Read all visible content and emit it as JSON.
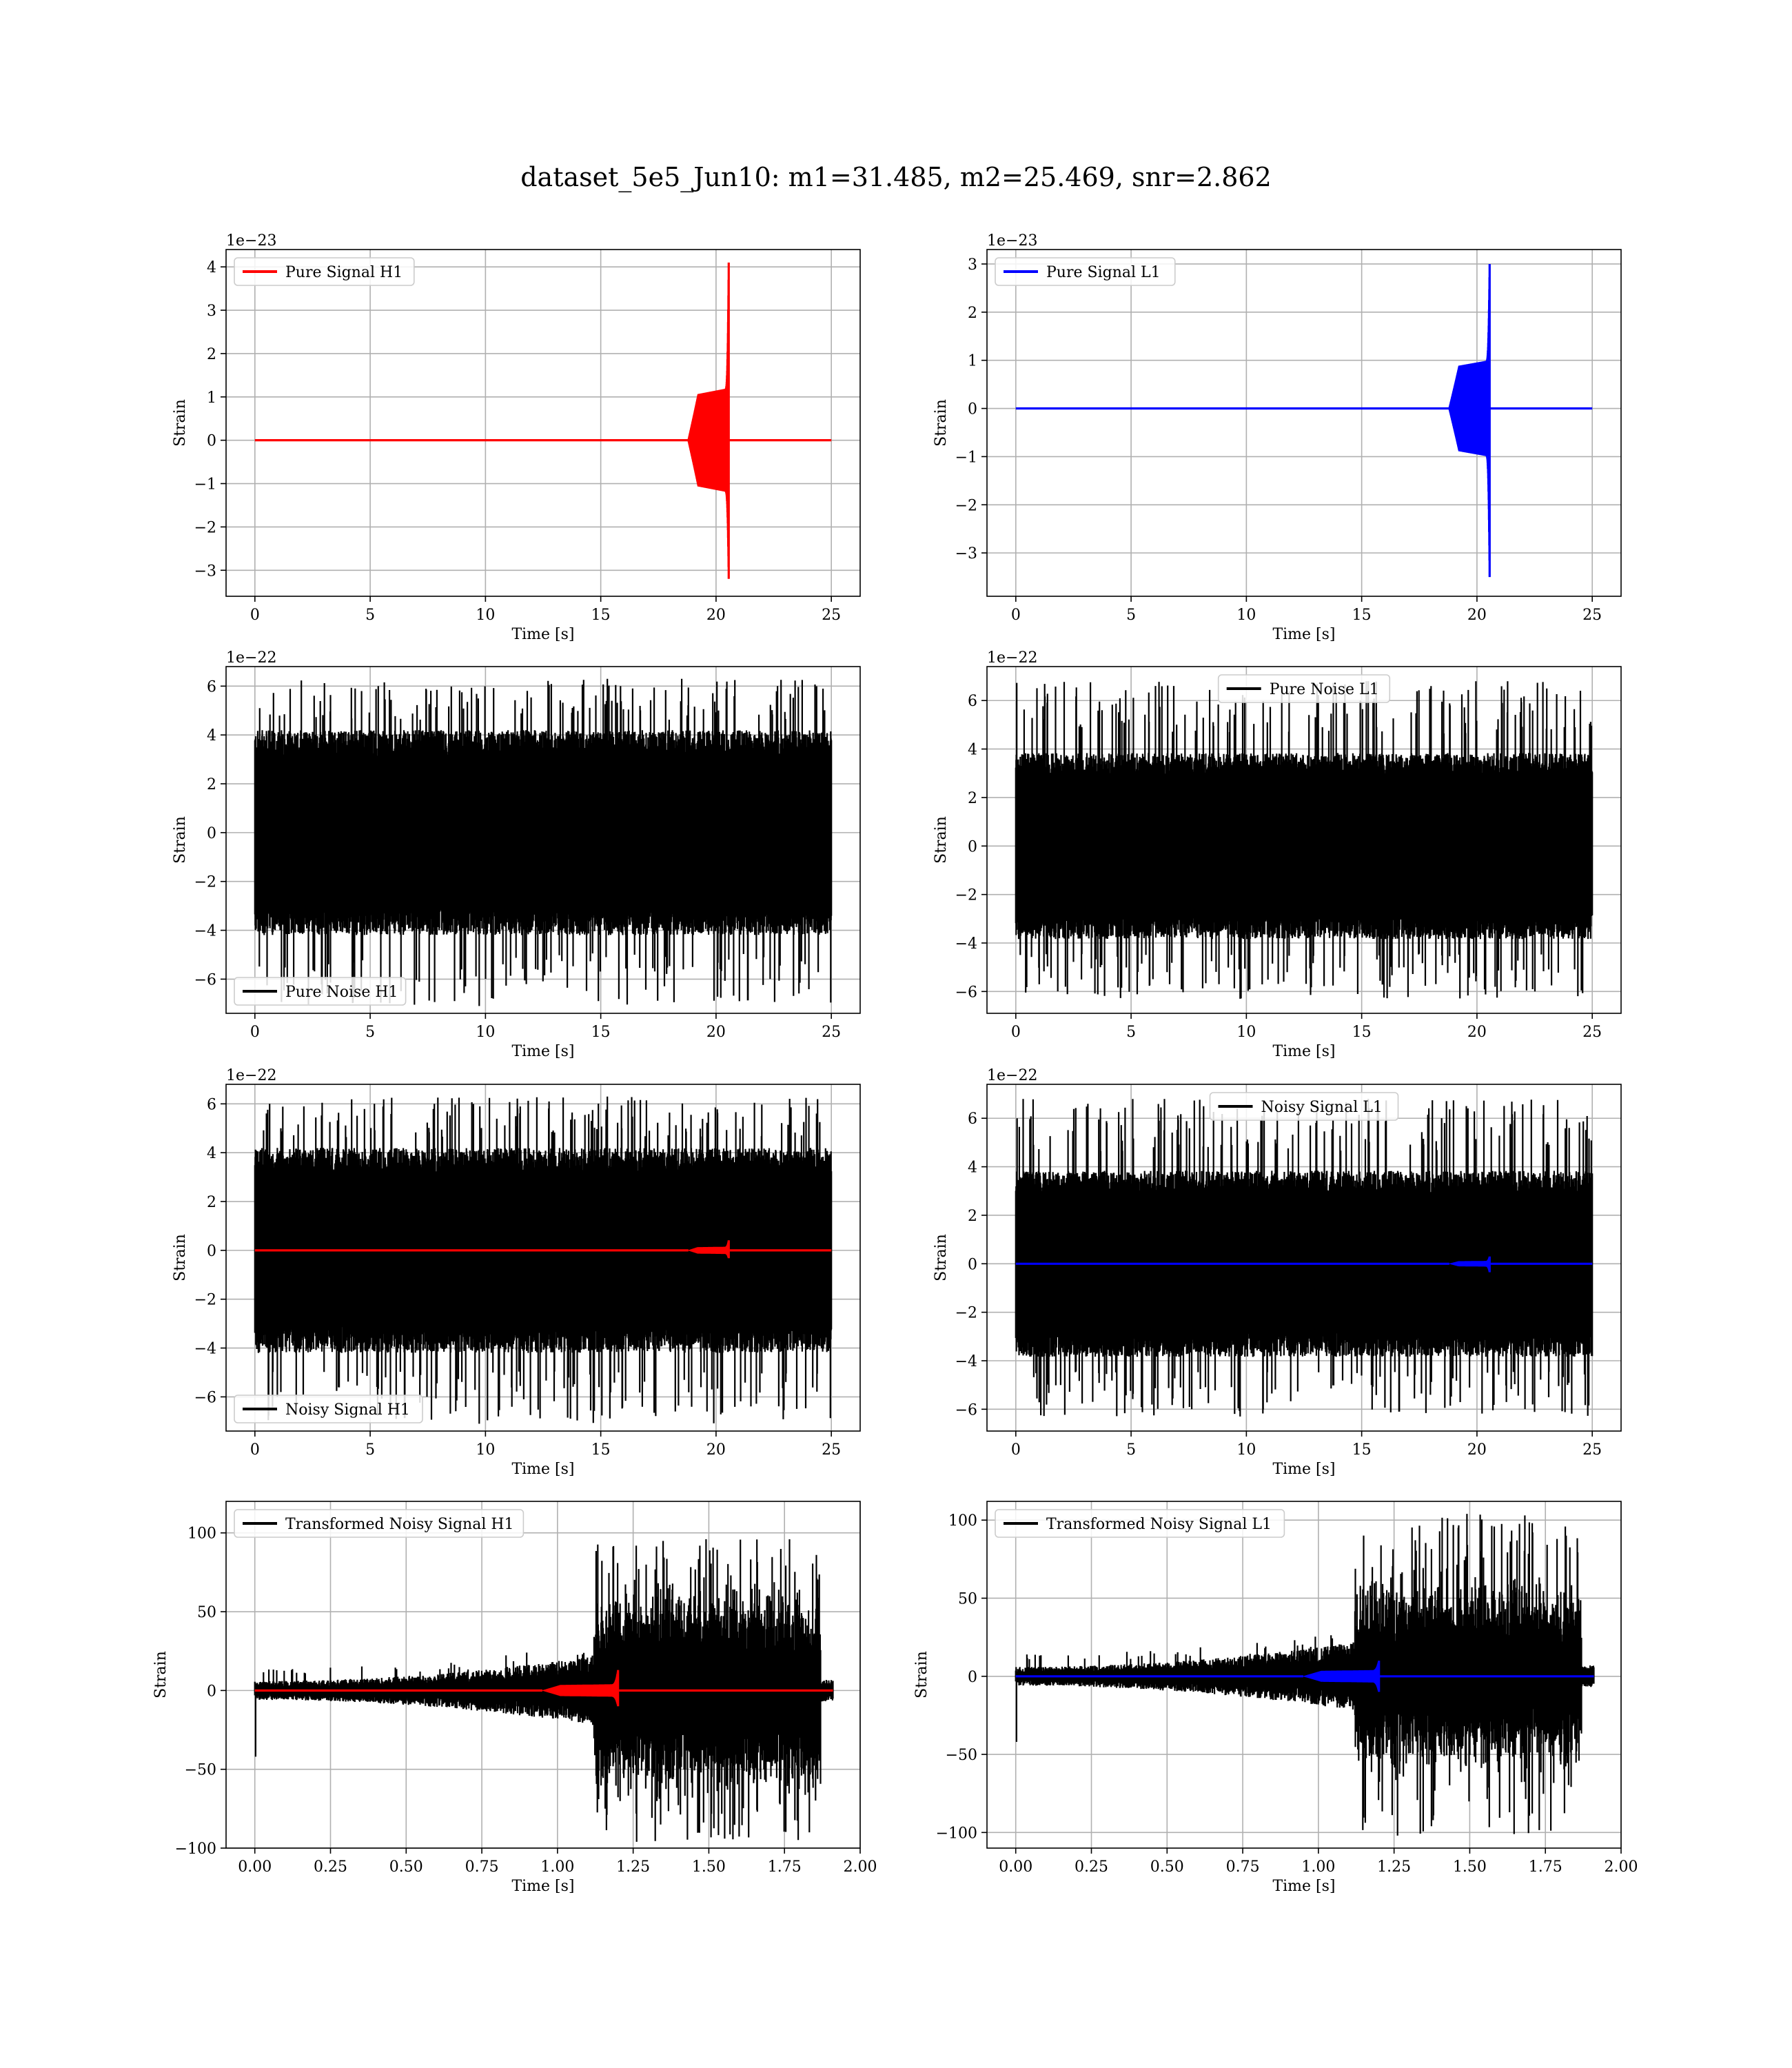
{
  "figure": {
    "title": "dataset_5e5_Jun10: m1=31.485, m2=25.469, snr=2.862"
  },
  "chart_data": [
    {
      "id": "h1-pure-signal",
      "type": "line",
      "xlabel": "Time [s]",
      "ylabel": "Strain",
      "y_offset_label": "1e−23",
      "xlim": [
        -1.25,
        26.25
      ],
      "ylim": [
        -3.6,
        4.4
      ],
      "xticks": [
        0,
        5,
        10,
        15,
        20,
        25
      ],
      "xtick_labels": [
        "0",
        "5",
        "10",
        "15",
        "20",
        "25"
      ],
      "yticks": [
        -3,
        -2,
        -1,
        0,
        1,
        2,
        3,
        4
      ],
      "ytick_labels": [
        "−3",
        "−2",
        "−1",
        "0",
        "1",
        "2",
        "3",
        "4"
      ],
      "grid": true,
      "legend_position": "upper left",
      "series": [
        {
          "name": "Pure Signal H1",
          "color": "#ff0000",
          "kind": "chirp",
          "x_start": 0,
          "x_end": 25,
          "merger_time": 20.55,
          "envelope_start": 18.8,
          "early_amplitude": 1.2,
          "peak_max": 4.1,
          "peak_min": -3.2
        }
      ]
    },
    {
      "id": "l1-pure-signal",
      "type": "line",
      "xlabel": "Time [s]",
      "ylabel": "Strain",
      "y_offset_label": "1e−23",
      "xlim": [
        -1.25,
        26.25
      ],
      "ylim": [
        -3.9,
        3.3
      ],
      "xticks": [
        0,
        5,
        10,
        15,
        20,
        25
      ],
      "xtick_labels": [
        "0",
        "5",
        "10",
        "15",
        "20",
        "25"
      ],
      "yticks": [
        -3,
        -2,
        -1,
        0,
        1,
        2,
        3
      ],
      "ytick_labels": [
        "−3",
        "−2",
        "−1",
        "0",
        "1",
        "2",
        "3"
      ],
      "grid": true,
      "legend_position": "upper left",
      "series": [
        {
          "name": "Pure Signal L1",
          "color": "#0000ff",
          "kind": "chirp",
          "x_start": 0,
          "x_end": 25,
          "merger_time": 20.55,
          "envelope_start": 18.8,
          "early_amplitude": 1.0,
          "peak_max": 3.0,
          "peak_min": -3.5
        }
      ]
    },
    {
      "id": "h1-pure-noise",
      "type": "line",
      "xlabel": "Time [s]",
      "ylabel": "Strain",
      "y_offset_label": "1e−22",
      "xlim": [
        -1.25,
        26.25
      ],
      "ylim": [
        -7.4,
        6.8
      ],
      "xticks": [
        0,
        5,
        10,
        15,
        20,
        25
      ],
      "xtick_labels": [
        "0",
        "5",
        "10",
        "15",
        "20",
        "25"
      ],
      "yticks": [
        -6,
        -4,
        -2,
        0,
        2,
        4,
        6
      ],
      "ytick_labels": [
        "−6",
        "−4",
        "−2",
        "0",
        "2",
        "4",
        "6"
      ],
      "grid": true,
      "legend_position": "lower left",
      "series": [
        {
          "name": "Pure Noise H1",
          "color": "#000000",
          "kind": "noise",
          "x_start": 0,
          "x_end": 25,
          "band": 3.5,
          "max": 6.3,
          "min": -7.1
        }
      ]
    },
    {
      "id": "l1-pure-noise",
      "type": "line",
      "xlabel": "Time [s]",
      "ylabel": "Strain",
      "y_offset_label": "1e−22",
      "xlim": [
        -1.25,
        26.25
      ],
      "ylim": [
        -6.9,
        7.4
      ],
      "xticks": [
        0,
        5,
        10,
        15,
        20,
        25
      ],
      "xtick_labels": [
        "0",
        "5",
        "10",
        "15",
        "20",
        "25"
      ],
      "yticks": [
        -6,
        -4,
        -2,
        0,
        2,
        4,
        6
      ],
      "ytick_labels": [
        "−6",
        "−4",
        "−2",
        "0",
        "2",
        "4",
        "6"
      ],
      "grid": true,
      "legend_position": "upper center",
      "series": [
        {
          "name": "Pure Noise L1",
          "color": "#000000",
          "kind": "noise",
          "x_start": 0,
          "x_end": 25,
          "band": 3.2,
          "max": 6.8,
          "min": -6.3
        }
      ]
    },
    {
      "id": "h1-noisy-signal",
      "type": "line",
      "xlabel": "Time [s]",
      "ylabel": "Strain",
      "y_offset_label": "1e−22",
      "xlim": [
        -1.25,
        26.25
      ],
      "ylim": [
        -7.4,
        6.8
      ],
      "xticks": [
        0,
        5,
        10,
        15,
        20,
        25
      ],
      "xtick_labels": [
        "0",
        "5",
        "10",
        "15",
        "20",
        "25"
      ],
      "yticks": [
        -6,
        -4,
        -2,
        0,
        2,
        4,
        6
      ],
      "ytick_labels": [
        "−6",
        "−4",
        "−2",
        "0",
        "2",
        "4",
        "6"
      ],
      "grid": true,
      "legend_position": "lower left",
      "series": [
        {
          "name": "Noisy Signal H1",
          "color": "#000000",
          "kind": "noise",
          "x_start": 0,
          "x_end": 25,
          "band": 3.5,
          "max": 6.3,
          "min": -7.1
        },
        {
          "name": "",
          "color": "#ff0000",
          "kind": "chirp",
          "x_start": 0,
          "x_end": 25,
          "merger_time": 20.55,
          "envelope_start": 18.8,
          "early_amplitude": 0.15,
          "peak_max": 0.41,
          "peak_min": -0.32
        }
      ]
    },
    {
      "id": "l1-noisy-signal",
      "type": "line",
      "xlabel": "Time [s]",
      "ylabel": "Strain",
      "y_offset_label": "1e−22",
      "xlim": [
        -1.25,
        26.25
      ],
      "ylim": [
        -6.9,
        7.4
      ],
      "xticks": [
        0,
        5,
        10,
        15,
        20,
        25
      ],
      "xtick_labels": [
        "0",
        "5",
        "10",
        "15",
        "20",
        "25"
      ],
      "yticks": [
        -6,
        -4,
        -2,
        0,
        2,
        4,
        6
      ],
      "ytick_labels": [
        "−6",
        "−4",
        "−2",
        "0",
        "2",
        "4",
        "6"
      ],
      "grid": true,
      "legend_position": "upper center",
      "series": [
        {
          "name": "Noisy Signal L1",
          "color": "#000000",
          "kind": "noise",
          "x_start": 0,
          "x_end": 25,
          "band": 3.2,
          "max": 6.8,
          "min": -6.3
        },
        {
          "name": "",
          "color": "#0000ff",
          "kind": "chirp",
          "x_start": 0,
          "x_end": 25,
          "merger_time": 20.55,
          "envelope_start": 18.8,
          "early_amplitude": 0.12,
          "peak_max": 0.3,
          "peak_min": -0.35
        }
      ]
    },
    {
      "id": "h1-transformed",
      "type": "line",
      "xlabel": "Time [s]",
      "ylabel": "Strain",
      "y_offset_label": "",
      "xlim": [
        -0.095,
        2.0
      ],
      "ylim": [
        -100,
        120
      ],
      "xticks": [
        0,
        0.25,
        0.5,
        0.75,
        1.0,
        1.25,
        1.5,
        1.75,
        2.0
      ],
      "xtick_labels": [
        "0.00",
        "0.25",
        "0.50",
        "0.75",
        "1.00",
        "1.25",
        "1.50",
        "1.75",
        "2.00"
      ],
      "yticks": [
        -100,
        -50,
        0,
        50,
        100
      ],
      "ytick_labels": [
        "−100",
        "−50",
        "0",
        "50",
        "100"
      ],
      "grid": true,
      "legend_position": "upper left",
      "series": [
        {
          "name": "Transformed Noisy Signal H1",
          "color": "#000000",
          "kind": "transformed",
          "x_start": 0,
          "x_end": 1.91,
          "burst_start": 1.12,
          "burst_end": 1.87,
          "pre_band": 10,
          "burst_band": 55,
          "max": 96,
          "min": -96
        },
        {
          "name": "",
          "color": "#ff0000",
          "kind": "chirp",
          "x_start": 0,
          "x_end": 1.91,
          "merger_time": 1.2,
          "envelope_start": 0.95,
          "early_amplitude": 4,
          "peak_max": 13,
          "peak_min": -10
        }
      ]
    },
    {
      "id": "l1-transformed",
      "type": "line",
      "xlabel": "Time [s]",
      "ylabel": "Strain",
      "y_offset_label": "",
      "xlim": [
        -0.095,
        2.0
      ],
      "ylim": [
        -110,
        112
      ],
      "xticks": [
        0,
        0.25,
        0.5,
        0.75,
        1.0,
        1.25,
        1.5,
        1.75,
        2.0
      ],
      "xtick_labels": [
        "0.00",
        "0.25",
        "0.50",
        "0.75",
        "1.00",
        "1.25",
        "1.50",
        "1.75",
        "2.00"
      ],
      "yticks": [
        -100,
        -50,
        0,
        50,
        100
      ],
      "ytick_labels": [
        "−100",
        "−50",
        "0",
        "50",
        "100"
      ],
      "grid": true,
      "legend_position": "upper left",
      "series": [
        {
          "name": "Transformed Noisy Signal L1",
          "color": "#000000",
          "kind": "transformed",
          "x_start": 0,
          "x_end": 1.91,
          "burst_start": 1.12,
          "burst_end": 1.87,
          "pre_band": 10,
          "burst_band": 50,
          "max": 104,
          "min": -102
        },
        {
          "name": "",
          "color": "#0000ff",
          "kind": "chirp",
          "x_start": 0,
          "x_end": 1.91,
          "merger_time": 1.2,
          "envelope_start": 0.95,
          "early_amplitude": 4,
          "peak_max": 10,
          "peak_min": -10
        }
      ]
    }
  ]
}
